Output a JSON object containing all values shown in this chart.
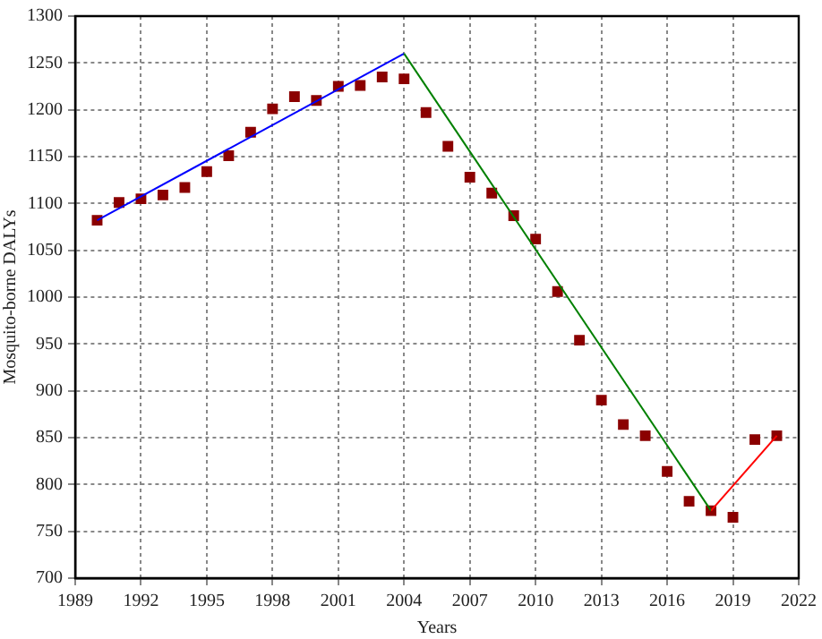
{
  "chart_data": {
    "type": "scatter",
    "xlabel": "Years",
    "ylabel": "Mosquito-borne DALYs",
    "xlim": [
      1989,
      2022
    ],
    "xticks": [
      1989,
      1992,
      1995,
      1998,
      2001,
      2004,
      2007,
      2010,
      2013,
      2016,
      2019,
      2022
    ],
    "ylim": [
      700,
      1300
    ],
    "yticks": [
      700,
      750,
      800,
      850,
      900,
      950,
      1000,
      1050,
      1100,
      1150,
      1200,
      1250,
      1300
    ],
    "grid": true,
    "legend": false,
    "marker": "square",
    "series": [
      {
        "color": "#8b0000",
        "x": [
          1990,
          1991,
          1992,
          1993,
          1994,
          1995,
          1996,
          1997,
          1998,
          1999,
          2000,
          2001,
          2002,
          2003,
          2004,
          2005,
          2006,
          2007,
          2008,
          2009,
          2010,
          2011,
          2012,
          2013,
          2014,
          2015,
          2016,
          2017,
          2018,
          2019,
          2020,
          2021
        ],
        "values": [
          1082,
          1101,
          1105,
          1109,
          1117,
          1134,
          1151,
          1176,
          1201,
          1214,
          1210,
          1225,
          1226,
          1235,
          1233,
          1197,
          1161,
          1128,
          1111,
          1087,
          1062,
          1006,
          954,
          890,
          864,
          852,
          814,
          782,
          772,
          765,
          848,
          852
        ]
      },
      {
        "type": "line",
        "color": "#0000ff",
        "marker": "none",
        "x": [
          1990,
          2004
        ],
        "values": [
          1082,
          1260
        ]
      },
      {
        "type": "line",
        "color": "#008000",
        "marker": "none",
        "x": [
          2004,
          2018
        ],
        "values": [
          1260,
          772
        ]
      },
      {
        "type": "line",
        "color": "#ff0000",
        "marker": "none",
        "x": [
          2018,
          2021
        ],
        "values": [
          772,
          852
        ]
      }
    ]
  }
}
